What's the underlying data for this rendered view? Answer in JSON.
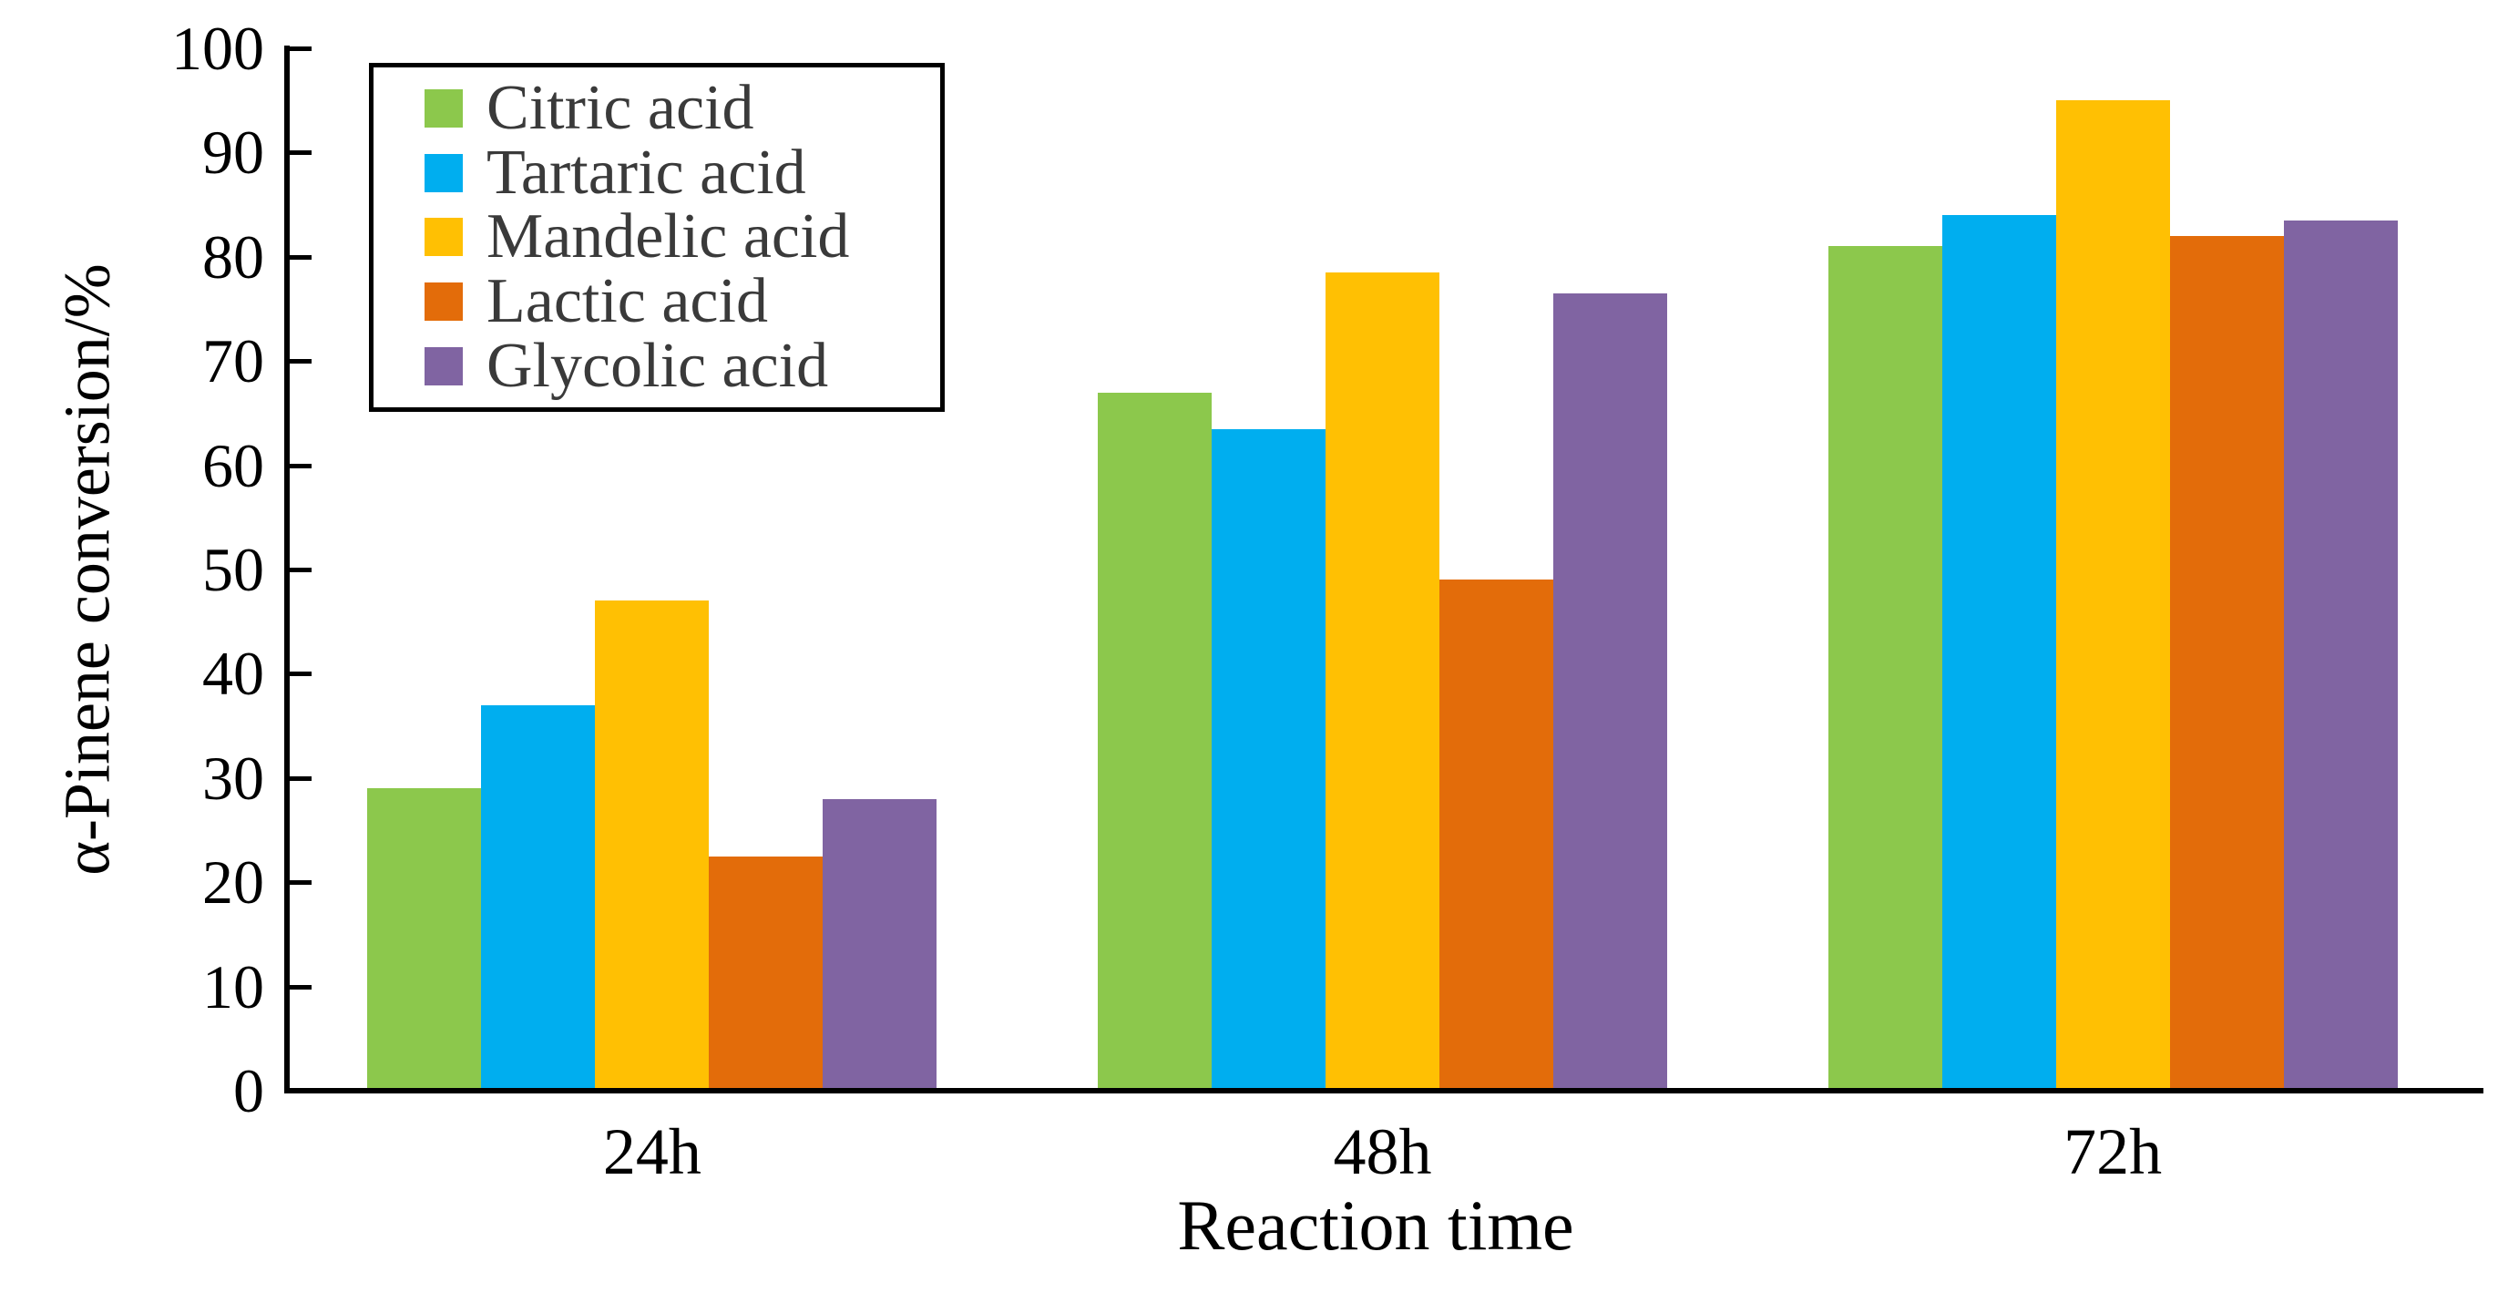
{
  "chart_data": {
    "type": "bar",
    "title": "",
    "xlabel": "Reaction time",
    "ylabel": "α-Pinene conversion/%",
    "categories": [
      "24h",
      "48h",
      "72h"
    ],
    "series": [
      {
        "name": "Citric acid",
        "color": "#8CC84C",
        "values": [
          29,
          67,
          81
        ]
      },
      {
        "name": "Tartaric acid",
        "color": "#00AEEF",
        "values": [
          37,
          63.5,
          84
        ]
      },
      {
        "name": "Mandelic acid",
        "color": "#FFC003",
        "values": [
          47,
          78.5,
          95
        ]
      },
      {
        "name": "Lactic acid",
        "color": "#E36C0A",
        "values": [
          22.5,
          49,
          82
        ]
      },
      {
        "name": "Glycolic acid",
        "color": "#8064A2",
        "values": [
          28,
          76.5,
          83.5
        ]
      }
    ],
    "ylim": [
      0,
      100
    ],
    "yticks": [
      0,
      10,
      20,
      30,
      40,
      50,
      60,
      70,
      80,
      90,
      100
    ],
    "grid": false,
    "legend_position": "top-left",
    "axis_color": "#000000",
    "text_color": "#000000",
    "legend_text_color": "#3a3a3a"
  }
}
